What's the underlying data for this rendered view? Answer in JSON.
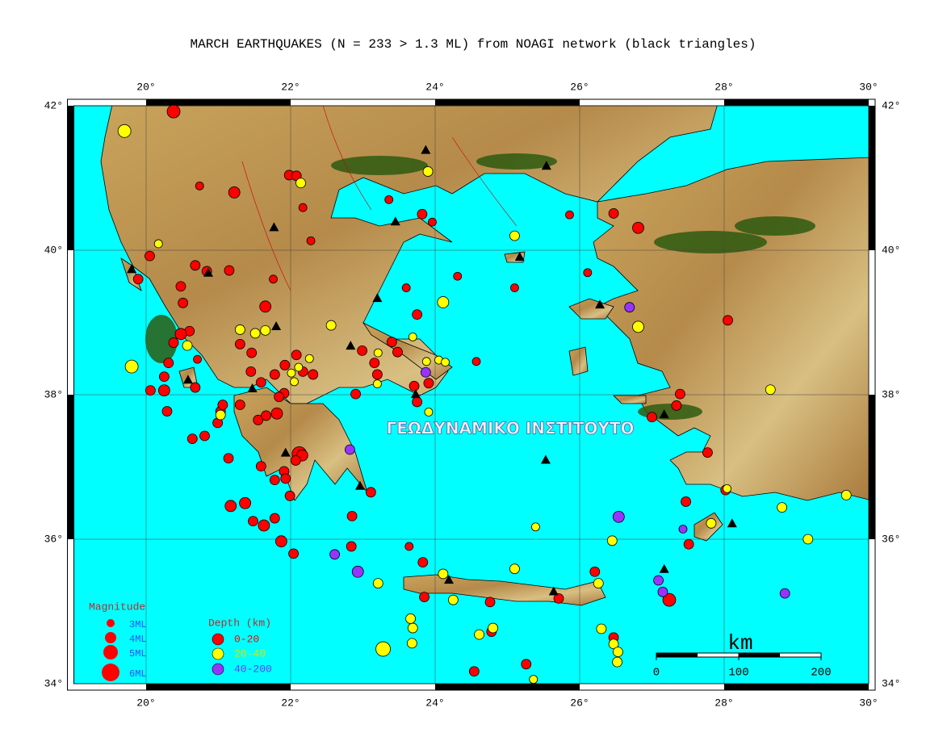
{
  "chart_data": {
    "type": "map",
    "title": "MARCH EARTHQUAKES (N = 233 > 1.3 ML) from NOAGI network (black triangles)",
    "xlim": [
      19,
      30
    ],
    "ylim": [
      34,
      42
    ],
    "xticks": [
      {
        "value": 20,
        "label": "20°"
      },
      {
        "value": 22,
        "label": "22°"
      },
      {
        "value": 24,
        "label": "24°"
      },
      {
        "value": 26,
        "label": "26°"
      },
      {
        "value": 28,
        "label": "28°"
      },
      {
        "value": 30,
        "label": "30°"
      }
    ],
    "yticks": [
      {
        "value": 34,
        "label": "34°"
      },
      {
        "value": 36,
        "label": "36°"
      },
      {
        "value": 38,
        "label": "38°"
      },
      {
        "value": 40,
        "label": "40°"
      },
      {
        "value": 42,
        "label": "42°"
      }
    ],
    "grid": true,
    "watermark": "ΓΕΩΔΥΝΑΜΙΚΟ ΙΝΣΤΙΤΟΥΤΟ",
    "magnitude_legend": {
      "title": "Magnitude",
      "labels": [
        "3ML",
        "4ML",
        "5ML",
        "6ML"
      ]
    },
    "depth_legend_title": "Depth (km)",
    "scale_bar": {
      "label": "km",
      "ticks": [
        0,
        100,
        200
      ]
    },
    "series": [
      {
        "name": "0-20",
        "color": "#ff0000",
        "x": [
          20.38,
          21.22,
          21.98,
          22.08,
          20.74,
          22.17,
          22.28,
          23.36,
          23.82,
          23.96,
          24.31,
          25.86,
          26.47,
          26.81,
          26.11,
          25.1,
          23.6,
          23.75,
          20.05,
          19.89,
          20.68,
          20.48,
          20.84,
          20.51,
          21.15,
          21.76,
          21.65,
          20.6,
          20.48,
          20.38,
          20.71,
          20.31,
          20.25,
          20.06,
          20.25,
          20.29,
          20.68,
          21.03,
          21.06,
          21.3,
          20.64,
          20.81,
          21.14,
          20.99,
          21.45,
          21.59,
          21.55,
          21.81,
          21.91,
          21.92,
          22.08,
          22.17,
          21.46,
          21.3,
          22.12,
          22.16,
          22.07,
          21.91,
          21.59,
          21.78,
          21.93,
          21.99,
          21.78,
          21.63,
          21.48,
          21.37,
          21.17,
          21.87,
          22.04,
          22.85,
          23.11,
          22.84,
          23.83,
          23.64,
          23.85,
          24.76,
          24.78,
          24.54,
          25.26,
          25.71,
          26.21,
          26.47,
          27.24,
          27.51,
          27.47,
          28.02,
          27.77,
          27.39,
          27.34,
          27.0,
          28.05,
          24.57,
          22.99,
          22.9,
          23.4,
          23.48,
          23.16,
          23.71,
          23.91,
          23.75,
          23.2,
          22.31,
          21.78,
          21.66,
          21.84
        ],
        "values": [
          41.92,
          40.8,
          41.04,
          41.03,
          40.89,
          40.59,
          40.13,
          40.7,
          40.5,
          40.39,
          39.64,
          40.49,
          40.51,
          40.31,
          39.69,
          39.48,
          39.48,
          39.11,
          39.92,
          39.6,
          39.79,
          39.5,
          39.71,
          39.27,
          39.72,
          39.6,
          39.22,
          38.88,
          38.84,
          38.72,
          38.49,
          38.44,
          38.25,
          38.06,
          38.06,
          37.77,
          38.1,
          37.77,
          37.86,
          37.86,
          37.39,
          37.43,
          37.12,
          37.61,
          38.32,
          38.17,
          37.65,
          37.74,
          38.02,
          38.41,
          38.55,
          38.32,
          38.58,
          38.7,
          37.18,
          37.16,
          37.09,
          36.94,
          37.01,
          36.82,
          36.84,
          36.6,
          36.29,
          36.19,
          36.25,
          36.5,
          36.46,
          35.97,
          35.8,
          36.32,
          36.65,
          35.9,
          35.68,
          35.9,
          35.2,
          35.13,
          34.72,
          34.17,
          34.27,
          35.18,
          35.55,
          34.64,
          35.16,
          35.93,
          36.52,
          36.68,
          37.2,
          38.01,
          37.85,
          37.69,
          39.03,
          38.46,
          38.61,
          38.01,
          38.73,
          38.59,
          38.44,
          38.12,
          38.16,
          37.9,
          38.28,
          38.28,
          38.28,
          37.71,
          37.97
        ],
        "mag": [
          4.5,
          4,
          3.5,
          3.5,
          3,
          3,
          3,
          3,
          3.5,
          3,
          3,
          3,
          3.5,
          4,
          3,
          3,
          3,
          3.5,
          3.5,
          3.5,
          3.5,
          3.5,
          3.5,
          3.5,
          3.5,
          3,
          4,
          3.5,
          4,
          3.5,
          3,
          3.5,
          3.5,
          3.5,
          4,
          3.5,
          3.5,
          3.5,
          3.5,
          3.5,
          3.5,
          3.5,
          3.5,
          3.5,
          3.5,
          3.5,
          3.5,
          4,
          3.5,
          3.5,
          3.5,
          3.5,
          3.5,
          3.5,
          5,
          4,
          3.5,
          3.5,
          3.5,
          3.5,
          3.5,
          3.5,
          3.5,
          4,
          3.5,
          4,
          4,
          4,
          3.5,
          3.5,
          3.5,
          3.5,
          3.5,
          3,
          3.5,
          3.5,
          3.5,
          3.5,
          3.5,
          3.5,
          3.5,
          3.5,
          4.5,
          3.5,
          3.5,
          3.5,
          3.5,
          3.5,
          3.5,
          3.5,
          3.5,
          3,
          3.5,
          3.5,
          3.5,
          3.5,
          3.5,
          3.5,
          3.5,
          3.5,
          3.5,
          3.5,
          3.5,
          3.5,
          3.5
        ]
      },
      {
        "name": "20-40",
        "color": "#ffff00",
        "x": [
          19.7,
          20.17,
          21.65,
          21.3,
          21.51,
          20.57,
          19.8,
          21.03,
          22.01,
          22.11,
          22.05,
          22.26,
          22.56,
          23.9,
          22.14,
          24.11,
          23.69,
          23.88,
          24.05,
          24.14,
          23.21,
          23.2,
          23.91,
          25.1,
          26.81,
          28.64,
          25.39,
          26.45,
          28.04,
          27.82,
          28.8,
          29.69,
          29.16,
          26.26,
          25.1,
          24.11,
          24.25,
          23.21,
          23.66,
          23.69,
          23.68,
          23.28,
          24.8,
          24.61,
          26.3,
          26.47,
          26.53,
          26.52,
          25.36
        ],
        "values": [
          41.65,
          40.09,
          38.89,
          38.9,
          38.85,
          38.68,
          38.39,
          37.72,
          38.3,
          38.38,
          38.18,
          38.5,
          38.96,
          41.09,
          40.93,
          39.28,
          38.8,
          38.46,
          38.48,
          38.45,
          38.58,
          38.15,
          37.76,
          40.2,
          38.94,
          38.07,
          36.17,
          35.98,
          36.7,
          36.22,
          36.44,
          36.61,
          36.0,
          35.39,
          35.59,
          35.52,
          35.16,
          35.39,
          34.9,
          34.77,
          34.56,
          34.48,
          34.77,
          34.68,
          34.76,
          34.55,
          34.44,
          34.3,
          34.06
        ],
        "mag": [
          4.5,
          3,
          3.5,
          3.5,
          3.5,
          3.5,
          4.5,
          3.5,
          3,
          3,
          3,
          3,
          3.5,
          3.5,
          3.5,
          4,
          3,
          3,
          3,
          3,
          3,
          3,
          3,
          3.5,
          4,
          3.5,
          3,
          3.5,
          3,
          3.5,
          3.5,
          3.5,
          3.5,
          3.5,
          3.5,
          3.5,
          3.5,
          3.5,
          3.5,
          3.5,
          3.5,
          5,
          3.5,
          3.5,
          3.5,
          3.5,
          3.5,
          3.5,
          3
        ]
      },
      {
        "name": "40-200",
        "color": "#9933ff",
        "x": [
          23.87,
          22.82,
          22.61,
          22.93,
          26.54,
          27.43,
          27.09,
          27.15,
          28.84,
          26.69
        ],
        "values": [
          38.31,
          37.24,
          35.79,
          35.55,
          36.31,
          36.14,
          35.43,
          35.27,
          35.25,
          39.21
        ],
        "mag": [
          3.5,
          3.5,
          3.5,
          4,
          4,
          3,
          3.5,
          3.5,
          3.5,
          3.5
        ]
      }
    ],
    "stations": {
      "x": [
        23.87,
        25.54,
        21.77,
        23.45,
        25.17,
        19.8,
        20.86,
        21.8,
        23.2,
        26.28,
        22.83,
        20.58,
        21.47,
        23.73,
        21.93,
        22.96,
        25.53,
        27.17,
        28.11,
        27.17,
        24.19,
        25.64
      ],
      "y": [
        41.39,
        41.17,
        40.32,
        40.4,
        39.91,
        39.74,
        39.69,
        38.95,
        39.34,
        39.25,
        38.68,
        38.21,
        38.09,
        38.01,
        37.2,
        36.74,
        37.1,
        37.73,
        36.22,
        35.59,
        35.44,
        35.28
      ]
    }
  }
}
